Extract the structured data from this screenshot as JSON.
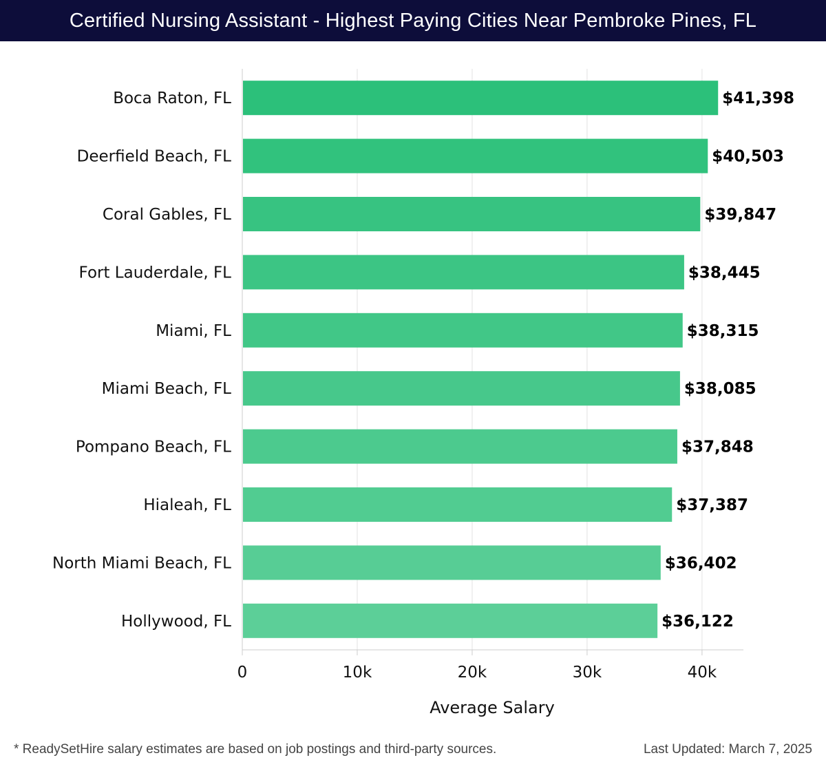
{
  "header": {
    "title": "Certified Nursing Assistant - Highest Paying Cities Near Pembroke Pines, FL"
  },
  "chart_data": {
    "type": "bar",
    "orientation": "horizontal",
    "title": "Certified Nursing Assistant - Highest Paying Cities Near Pembroke Pines, FL",
    "xlabel": "Average Salary",
    "ylabel": "",
    "categories": [
      "Boca Raton, FL",
      "Deerfield Beach, FL",
      "Coral Gables, FL",
      "Fort Lauderdale, FL",
      "Miami, FL",
      "Miami Beach, FL",
      "Pompano Beach, FL",
      "Hialeah, FL",
      "North Miami Beach, FL",
      "Hollywood, FL"
    ],
    "values": [
      41398,
      40503,
      39847,
      38445,
      38315,
      38085,
      37848,
      37387,
      36402,
      36122
    ],
    "value_labels": [
      "$41,398",
      "$40,503",
      "$39,847",
      "$38,445",
      "$38,315",
      "$38,085",
      "$37,848",
      "$37,387",
      "$36,402",
      "$36,122"
    ],
    "x_ticks": [
      0,
      10000,
      20000,
      30000,
      40000
    ],
    "x_tick_labels": [
      "0",
      "10k",
      "20k",
      "30k",
      "40k"
    ],
    "xlim": [
      0,
      43600
    ],
    "grid": true,
    "bar_color_top": "#2cc07a",
    "bar_color_bottom": "#5ccf98"
  },
  "footer": {
    "note": "* ReadySetHire salary estimates are based on job postings and third-party sources.",
    "updated": "Last Updated: March 7, 2025"
  }
}
